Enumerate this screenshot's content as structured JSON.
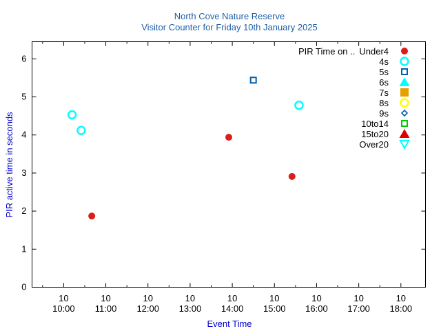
{
  "chart_data": {
    "type": "scatter",
    "title": "North Cove Nature Reserve",
    "subtitle": "Visitor Counter for Friday 10th January 2025",
    "xlabel": "Event Time",
    "ylabel": "PIR active time in seconds",
    "x_ticks": [
      {
        "value": "10:00",
        "top": "10",
        "bottom": "10:00"
      },
      {
        "value": "11:00",
        "top": "10",
        "bottom": "11:00"
      },
      {
        "value": "12:00",
        "top": "10",
        "bottom": "12:00"
      },
      {
        "value": "13:00",
        "top": "10",
        "bottom": "13:00"
      },
      {
        "value": "14:00",
        "top": "10",
        "bottom": "14:00"
      },
      {
        "value": "15:00",
        "top": "10",
        "bottom": "15:00"
      },
      {
        "value": "16:00",
        "top": "10",
        "bottom": "16:00"
      },
      {
        "value": "17:00",
        "top": "10",
        "bottom": "17:00"
      },
      {
        "value": "18:00",
        "top": "10",
        "bottom": "18:00"
      }
    ],
    "xlim": [
      "09:15",
      "18:35"
    ],
    "ylim": [
      0,
      6.45
    ],
    "y_ticks": [
      0,
      1,
      2,
      3,
      4,
      5,
      6
    ],
    "grid": false,
    "legend_position": "top-right",
    "legend_title": "PIR Time on ..",
    "series": [
      {
        "name": "Under4",
        "marker": "circle-filled",
        "color": "#dd1c1c",
        "points": [
          {
            "x": "10:40",
            "y": 1.87
          },
          {
            "x": "13:55",
            "y": 3.94
          },
          {
            "x": "15:25",
            "y": 2.91
          }
        ]
      },
      {
        "name": "4s",
        "marker": "circle-open",
        "color": "#00ffff",
        "points": [
          {
            "x": "10:12",
            "y": 4.53
          },
          {
            "x": "10:25",
            "y": 4.12
          },
          {
            "x": "15:35",
            "y": 4.78
          }
        ]
      },
      {
        "name": "5s",
        "marker": "square-open",
        "color": "#0060ad",
        "points": [
          {
            "x": "14:30",
            "y": 5.44
          }
        ]
      },
      {
        "name": "6s",
        "marker": "triangle-filled",
        "color": "#00ffff",
        "points": []
      },
      {
        "name": "7s",
        "marker": "square-filled",
        "color": "#e69f00",
        "points": []
      },
      {
        "name": "8s",
        "marker": "circle-open",
        "color": "#ffff00",
        "points": []
      },
      {
        "name": "9s",
        "marker": "diamond-open",
        "color": "#0060ad",
        "points": []
      },
      {
        "name": "10to14",
        "marker": "square-open",
        "color": "#00cc00",
        "points": []
      },
      {
        "name": "15to20",
        "marker": "triangle-filled",
        "color": "#dd0000",
        "points": []
      },
      {
        "name": "Over20",
        "marker": "triangle-down-open",
        "color": "#00ffff",
        "points": []
      }
    ]
  }
}
